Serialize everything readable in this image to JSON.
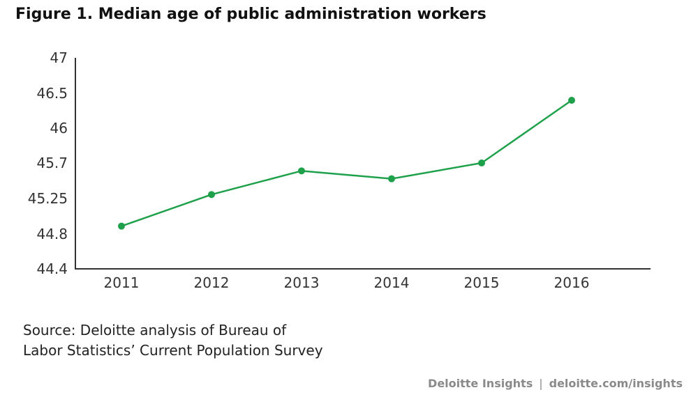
{
  "chart_data": {
    "type": "line",
    "title": "Figure 1. Median age of public administration workers",
    "xlabel": "",
    "ylabel": "",
    "categories": [
      "2011",
      "2012",
      "2013",
      "2014",
      "2015",
      "2016"
    ],
    "series": [
      {
        "values": [
          44.9,
          45.3,
          45.6,
          45.5,
          45.7,
          46.4
        ]
      }
    ],
    "y_ticks": [
      "44.4",
      "44.8",
      "45.25",
      "45.7",
      "46",
      "46.5",
      "47"
    ],
    "ylim": [
      44.4,
      47
    ],
    "grid": false,
    "color": "#1fa04b"
  },
  "source": {
    "line1": "Source: Deloitte analysis of Bureau of",
    "line2": "Labor Statistics’ Current Population Survey"
  },
  "footer": {
    "brand": "Deloitte Insights",
    "separator": "|",
    "url": "deloitte.com/insights"
  }
}
